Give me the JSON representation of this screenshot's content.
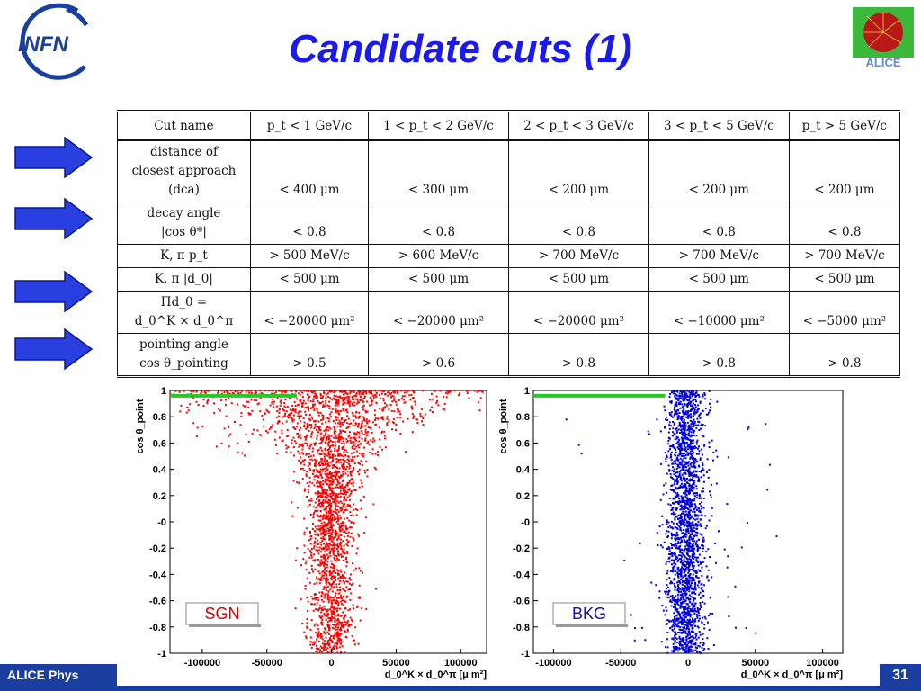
{
  "slide": {
    "title": "Candidate cuts (1)",
    "page_number": "31",
    "footer_text": "ALICE Phys"
  },
  "logos": {
    "left": {
      "text": "INFN",
      "icon": "infn-logo"
    },
    "right": {
      "text": "ALICE",
      "icon": "alice-logo"
    }
  },
  "colors": {
    "title": "#1a1aee",
    "arrow": "#2a3fe0",
    "sgn_points": "#ff0000",
    "bkg_points": "#0000dd",
    "cut_line": "#22cc22",
    "footer": "#1a3fa0"
  },
  "table": {
    "headers": [
      "Cut name",
      "p_t < 1 GeV/c",
      "1 < p_t < 2 GeV/c",
      "2 < p_t < 3 GeV/c",
      "3 < p_t < 5 GeV/c",
      "p_t > 5 GeV/c"
    ],
    "rows": [
      {
        "name": [
          "distance of",
          "closest approach",
          "(dca)"
        ],
        "values": [
          "< 400 μm",
          "< 300 μm",
          "< 200 μm",
          "< 200 μm",
          "< 200 μm"
        ],
        "arrow": true
      },
      {
        "name": [
          "decay angle",
          "|cos θ*|"
        ],
        "values": [
          "< 0.8",
          "< 0.8",
          "< 0.8",
          "< 0.8",
          "< 0.8"
        ],
        "arrow": true
      },
      {
        "name": [
          "K, π p_t"
        ],
        "values": [
          "> 500 MeV/c",
          "> 600 MeV/c",
          "> 700 MeV/c",
          "> 700 MeV/c",
          "> 700 MeV/c"
        ],
        "arrow": false
      },
      {
        "name": [
          "K, π |d_0|"
        ],
        "values": [
          "< 500 μm",
          "< 500 μm",
          "< 500 μm",
          "< 500 μm",
          "< 500 μm"
        ],
        "arrow": false
      },
      {
        "name": [
          "Πd_0 =",
          "d_0^K × d_0^π"
        ],
        "values": [
          "< −20000 μm²",
          "< −20000 μm²",
          "< −20000 μm²",
          "< −10000 μm²",
          "< −5000 μm²"
        ],
        "arrow": true
      },
      {
        "name": [
          "pointing angle",
          "cos θ_pointing"
        ],
        "values": [
          "> 0.5",
          "> 0.6",
          "> 0.8",
          "> 0.8",
          "> 0.8"
        ],
        "arrow": true
      }
    ]
  },
  "chart_data": [
    {
      "type": "scatter",
      "tag": "SGN",
      "ylabel": "cos θ_point",
      "xlabel": "d_0^K × d_0^π [μ m²]",
      "xlim": [
        -125000,
        120000
      ],
      "ylim": [
        -1,
        1
      ],
      "x_ticks": [
        "-100000",
        "-50000",
        "0",
        "50000",
        "100000"
      ],
      "x_tick_values": [
        -100000,
        -50000,
        0,
        50000,
        100000
      ],
      "y_ticks": [
        "1",
        "0.8",
        "0.6",
        "0.4",
        "0.2",
        "-0",
        "-0.2",
        "-0.4",
        "-0.6",
        "-0.8",
        "-1"
      ],
      "y_tick_values": [
        1,
        0.8,
        0.6,
        0.4,
        0.2,
        0,
        -0.2,
        -0.4,
        -0.6,
        -0.8,
        -1
      ],
      "cut": {
        "x_to": -27000,
        "y": 0.96
      },
      "color": "#ff0000"
    },
    {
      "type": "scatter",
      "tag": "BKG",
      "ylabel": "cos θ_point",
      "xlabel": "d_0^K × d_0^π [μ m²]",
      "xlim": [
        -115000,
        115000
      ],
      "ylim": [
        -1,
        1
      ],
      "x_ticks": [
        "-100000",
        "-50000",
        "0",
        "50000",
        "100000"
      ],
      "x_tick_values": [
        -100000,
        -50000,
        0,
        50000,
        100000
      ],
      "y_ticks": [
        "1",
        "0.8",
        "0.6",
        "0.4",
        "0.2",
        "-0",
        "-0.2",
        "-0.4",
        "-0.6",
        "-0.8",
        "-1"
      ],
      "y_tick_values": [
        1,
        0.8,
        0.6,
        0.4,
        0.2,
        0,
        -0.2,
        -0.4,
        -0.6,
        -0.8,
        -1
      ],
      "cut": {
        "x_to": -17000,
        "y": 0.96
      },
      "color": "#0000dd"
    }
  ]
}
